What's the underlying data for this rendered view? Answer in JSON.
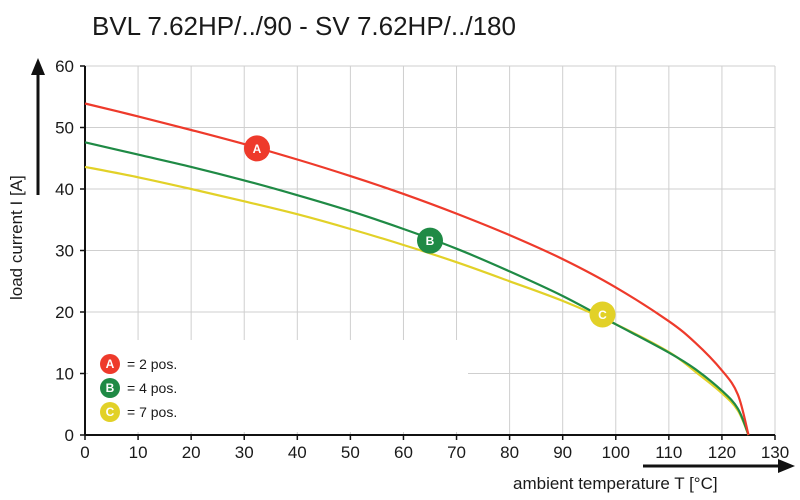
{
  "chart_data": {
    "type": "line",
    "title": "BVL 7.62HP/../90 - SV 7.62HP/../180",
    "xlabel": "ambient temperature T [°C]",
    "ylabel": "load current I [A]",
    "xlim": [
      0,
      130
    ],
    "ylim": [
      0,
      60
    ],
    "xticks": [
      "0",
      "10",
      "20",
      "30",
      "40",
      "50",
      "60",
      "70",
      "80",
      "90",
      "100",
      "110",
      "120",
      "130"
    ],
    "yticks": [
      "0",
      "10",
      "20",
      "30",
      "40",
      "50",
      "60"
    ],
    "grid": true,
    "legend_position": "bottom-left",
    "series": [
      {
        "name": "A",
        "label": "= 2 pos.",
        "color": "#ee3a2b",
        "x": [
          0,
          10,
          20,
          30,
          40,
          50,
          60,
          70,
          80,
          90,
          100,
          110,
          115,
          120,
          123,
          125
        ],
        "y": [
          53.9,
          51.8,
          49.6,
          47.3,
          44.8,
          42.1,
          39.2,
          36.0,
          32.5,
          28.6,
          24.0,
          18.5,
          15.0,
          10.5,
          6.6,
          0
        ],
        "marker_x": 32.4,
        "marker_y": 46.6
      },
      {
        "name": "B",
        "label": "= 4 pos.",
        "color": "#1f8a45",
        "x": [
          0,
          10,
          20,
          30,
          40,
          50,
          60,
          70,
          80,
          90,
          100,
          110,
          115,
          120,
          123,
          125
        ],
        "y": [
          47.6,
          45.6,
          43.6,
          41.4,
          39.0,
          36.4,
          33.5,
          30.3,
          26.6,
          22.6,
          18.0,
          13.4,
          10.7,
          7.2,
          4.3,
          0
        ],
        "marker_x": 65.0,
        "marker_y": 31.6
      },
      {
        "name": "C",
        "label": "= 7 pos.",
        "color": "#e2d128",
        "x": [
          0,
          10,
          20,
          30,
          40,
          50,
          60,
          70,
          80,
          90,
          100,
          110,
          115,
          120,
          123,
          125
        ],
        "y": [
          43.6,
          41.9,
          40.0,
          38.0,
          35.9,
          33.5,
          30.9,
          28.1,
          25.0,
          21.8,
          18.0,
          13.5,
          10.3,
          6.8,
          4.0,
          0
        ],
        "marker_x": 97.5,
        "marker_y": 19.6
      }
    ]
  }
}
